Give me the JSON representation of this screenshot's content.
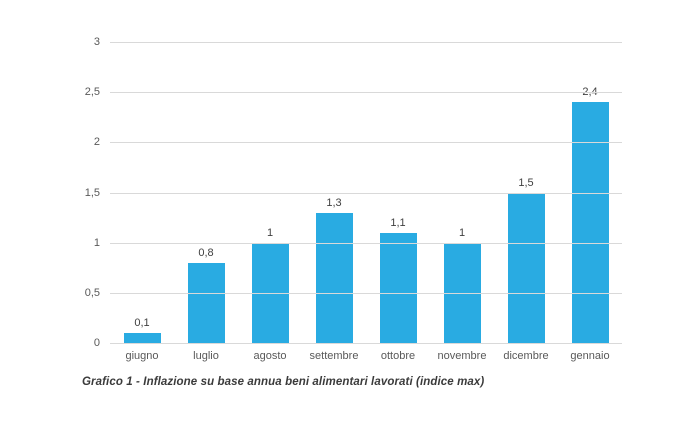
{
  "chart_data": {
    "type": "bar",
    "title": "",
    "xlabel": "",
    "ylabel": "",
    "categories": [
      "giugno",
      "luglio",
      "agosto",
      "settembre",
      "ottobre",
      "novembre",
      "dicembre",
      "gennaio"
    ],
    "values": [
      0.1,
      0.8,
      1,
      1.3,
      1.1,
      1,
      1.5,
      2.4
    ],
    "value_labels": [
      "0,1",
      "0,8",
      "1",
      "1,3",
      "1,1",
      "1",
      "1,5",
      "2,4"
    ],
    "ylim": [
      0,
      3
    ],
    "y_ticks": [
      {
        "value": 0,
        "label": "0"
      },
      {
        "value": 0.5,
        "label": "0,5"
      },
      {
        "value": 1,
        "label": "1"
      },
      {
        "value": 1.5,
        "label": "1,5"
      },
      {
        "value": 2,
        "label": "2"
      },
      {
        "value": 2.5,
        "label": "2,5"
      },
      {
        "value": 3,
        "label": "3"
      }
    ],
    "grid": true,
    "legend_position": "none",
    "bar_color": "#29abe2",
    "gridline_color": "#d9d9d9",
    "tick_label_color": "#595959",
    "value_label_color": "#404040"
  },
  "caption": "Grafico 1 - Inflazione su base annua beni alimentari lavorati (indice max)"
}
